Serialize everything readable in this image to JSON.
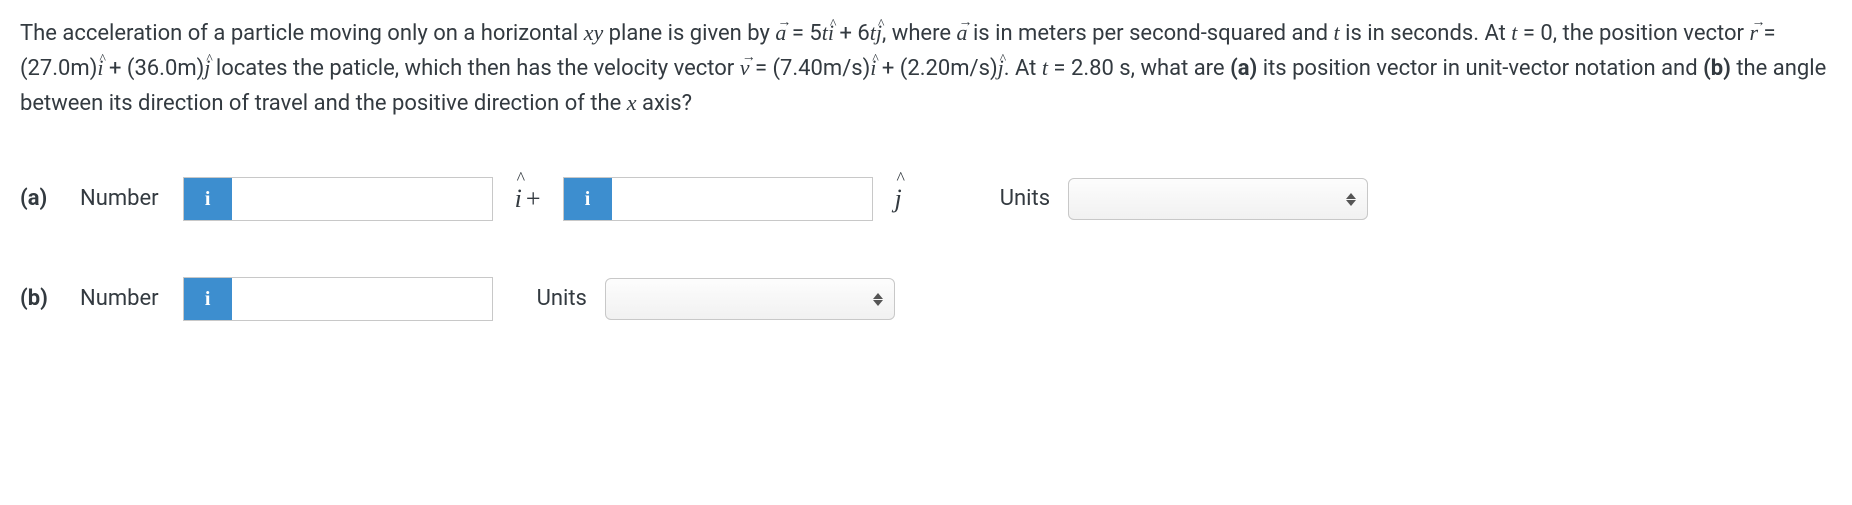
{
  "question": {
    "html": "The acceleration of a particle moving only on a horizontal <span class='mathit'>xy</span> plane is given by <span class='mathit vec-over'><span class='arrow'>→</span>a</span> = 5<span class='mathit'>t</span><span class='mathit hat-over'><span class='h'>^</span>i</span> + 6<span class='mathit'>t</span><span class='mathit hat-over'><span class='h'>^</span>j</span>, where <span class='mathit vec-over'><span class='arrow'>→</span>a</span> is in meters per second-squared and <span class='mathit'>t</span> is in seconds. At <span class='mathit'>t</span> = 0, the position vector <span class='mathit vec-over'><span class='arrow'>→</span>r</span> = (27.0m)<span class='mathit hat-over'><span class='h'>^</span>i</span> + (36.0m)<span class='mathit hat-over'><span class='h'>^</span>j</span> locates the paticle, which then has the velocity vector <span class='mathit vec-over'><span class='arrow'>→</span>v</span> = (7.40m/s)<span class='mathit hat-over'><span class='h'>^</span>i</span> + (2.20m/s)<span class='mathit hat-over'><span class='h'>^</span>j</span>. At <span class='mathit'>t</span> = 2.80 s, what are <b>(a)</b> its position vector in unit-vector notation and <b>(b)</b> the angle between its direction of travel and the positive direction of the <span class='mathit'>x</span> axis?"
  },
  "parts": {
    "a": {
      "label": "(a)",
      "numberLabel": "Number",
      "badge": "i",
      "input1_value": "",
      "mid": "î+",
      "input2_value": "",
      "suffix": "ĵ",
      "unitsLabel": "Units",
      "unitsSelected": ""
    },
    "b": {
      "label": "(b)",
      "numberLabel": "Number",
      "badge": "i",
      "input_value": "",
      "unitsLabel": "Units",
      "unitsSelected": ""
    }
  },
  "colors": {
    "badge_bg": "#3d8ecf",
    "border": "#c8c8c8",
    "text": "#333a40"
  }
}
